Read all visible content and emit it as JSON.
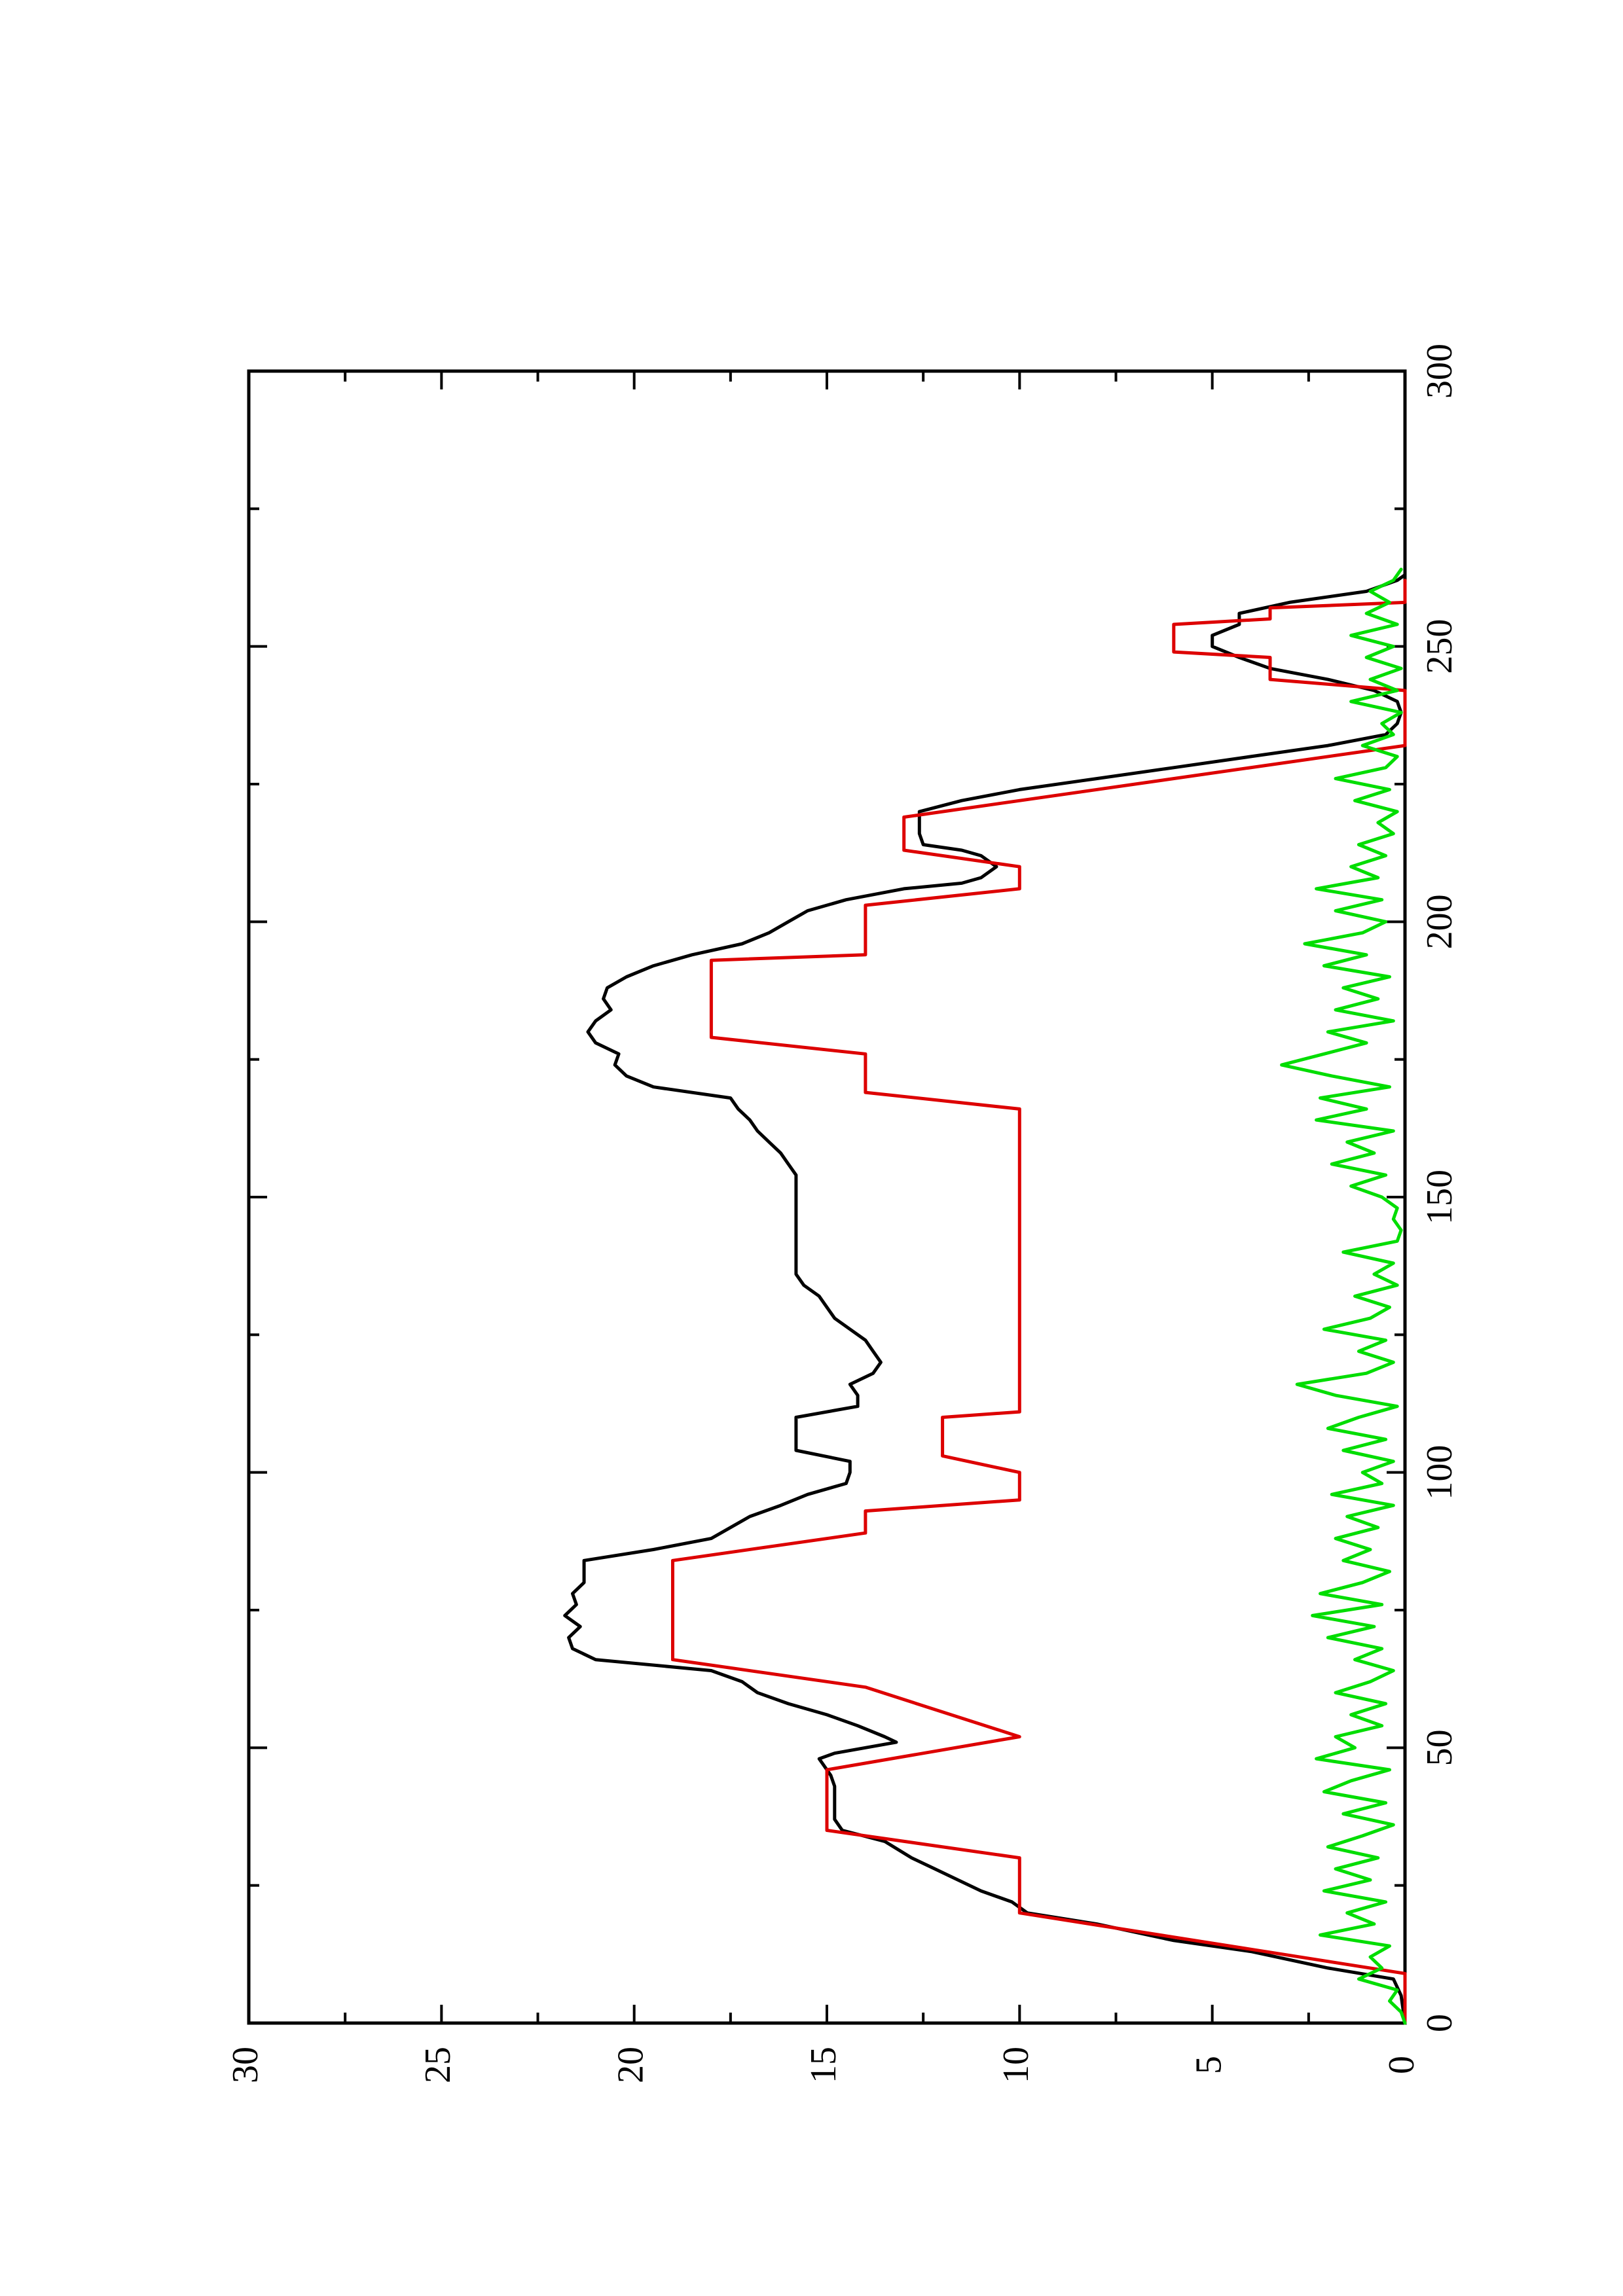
{
  "chart_data": {
    "type": "line",
    "title": "",
    "xlabel": "",
    "ylabel": "",
    "orientation": "rotated 90 degrees counter-clockwise (x axis runs bottom-to-top, y axis runs right-to-left)",
    "xlim": [
      0,
      300
    ],
    "ylim": [
      0,
      30
    ],
    "x_ticks": [
      "0",
      "50",
      "100",
      "150",
      "200",
      "250",
      "300"
    ],
    "y_ticks": [
      "0",
      "5",
      "10",
      "15",
      "20",
      "25",
      "30"
    ],
    "grid": false,
    "legend": "none",
    "series": [
      {
        "color": "#000000",
        "points": [
          [
            0,
            0
          ],
          [
            5,
            0.1
          ],
          [
            8,
            0.3
          ],
          [
            10,
            2
          ],
          [
            13,
            4
          ],
          [
            15,
            6
          ],
          [
            18,
            8
          ],
          [
            20,
            9.8
          ],
          [
            22,
            10.2
          ],
          [
            24,
            11
          ],
          [
            26,
            11.6
          ],
          [
            28,
            12.2
          ],
          [
            30,
            12.8
          ],
          [
            33,
            13.5
          ],
          [
            35,
            14.6
          ],
          [
            37,
            14.8
          ],
          [
            40,
            14.8
          ],
          [
            43,
            14.8
          ],
          [
            45,
            14.9
          ],
          [
            47,
            15.1
          ],
          [
            48,
            15.2
          ],
          [
            49,
            14.8
          ],
          [
            50,
            14
          ],
          [
            51,
            13.2
          ],
          [
            52,
            13.5
          ],
          [
            54,
            14.2
          ],
          [
            56,
            15
          ],
          [
            58,
            16
          ],
          [
            60,
            16.8
          ],
          [
            62,
            17.2
          ],
          [
            64,
            18
          ],
          [
            66,
            21
          ],
          [
            68,
            21.6
          ],
          [
            70,
            21.7
          ],
          [
            72,
            21.4
          ],
          [
            74,
            21.8
          ],
          [
            76,
            21.5
          ],
          [
            78,
            21.6
          ],
          [
            80,
            21.3
          ],
          [
            82,
            21.3
          ],
          [
            84,
            21.3
          ],
          [
            86,
            19.5
          ],
          [
            88,
            18
          ],
          [
            90,
            17.5
          ],
          [
            92,
            17
          ],
          [
            94,
            16.2
          ],
          [
            96,
            15.5
          ],
          [
            98,
            14.5
          ],
          [
            100,
            14.4
          ],
          [
            102,
            14.4
          ],
          [
            104,
            15.8
          ],
          [
            106,
            15.8
          ],
          [
            108,
            15.8
          ],
          [
            110,
            15.8
          ],
          [
            112,
            14.2
          ],
          [
            114,
            14.2
          ],
          [
            116,
            14.4
          ],
          [
            118,
            13.8
          ],
          [
            120,
            13.6
          ],
          [
            122,
            13.8
          ],
          [
            124,
            14
          ],
          [
            126,
            14.4
          ],
          [
            128,
            14.8
          ],
          [
            130,
            15
          ],
          [
            132,
            15.2
          ],
          [
            134,
            15.6
          ],
          [
            136,
            15.8
          ],
          [
            138,
            15.8
          ],
          [
            140,
            15.8
          ],
          [
            142,
            15.8
          ],
          [
            144,
            15.8
          ],
          [
            146,
            15.8
          ],
          [
            148,
            15.8
          ],
          [
            150,
            15.8
          ],
          [
            152,
            15.8
          ],
          [
            154,
            15.8
          ],
          [
            156,
            16
          ],
          [
            158,
            16.2
          ],
          [
            160,
            16.5
          ],
          [
            162,
            16.8
          ],
          [
            164,
            17
          ],
          [
            166,
            17.3
          ],
          [
            168,
            17.5
          ],
          [
            170,
            19.5
          ],
          [
            172,
            20.2
          ],
          [
            174,
            20.5
          ],
          [
            176,
            20.4
          ],
          [
            178,
            21
          ],
          [
            180,
            21.2
          ],
          [
            182,
            21
          ],
          [
            184,
            20.6
          ],
          [
            186,
            20.8
          ],
          [
            188,
            20.7
          ],
          [
            190,
            20.2
          ],
          [
            192,
            19.5
          ],
          [
            194,
            18.5
          ],
          [
            196,
            17.2
          ],
          [
            198,
            16.5
          ],
          [
            200,
            16
          ],
          [
            202,
            15.5
          ],
          [
            204,
            14.5
          ],
          [
            206,
            13
          ],
          [
            207,
            11.5
          ],
          [
            208,
            11
          ],
          [
            209,
            10.8
          ],
          [
            210,
            10.6
          ],
          [
            212,
            11
          ],
          [
            213,
            11.5
          ],
          [
            214,
            12.5
          ],
          [
            216,
            12.6
          ],
          [
            218,
            12.6
          ],
          [
            220,
            12.6
          ],
          [
            222,
            11.5
          ],
          [
            224,
            10
          ],
          [
            226,
            8
          ],
          [
            228,
            6
          ],
          [
            230,
            4
          ],
          [
            232,
            2
          ],
          [
            234,
            0.5
          ],
          [
            236,
            0.2
          ],
          [
            238,
            0.1
          ],
          [
            240,
            0.2
          ],
          [
            242,
            0.8
          ],
          [
            244,
            2
          ],
          [
            246,
            3.5
          ],
          [
            248,
            4.3
          ],
          [
            250,
            5
          ],
          [
            252,
            5
          ],
          [
            254,
            4.3
          ],
          [
            256,
            4.3
          ],
          [
            258,
            3
          ],
          [
            260,
            1
          ],
          [
            262,
            0.2
          ],
          [
            263,
            0
          ]
        ]
      },
      {
        "color": "#dd0000",
        "points": [
          [
            0,
            0
          ],
          [
            9,
            0
          ],
          [
            20,
            10
          ],
          [
            30,
            10
          ],
          [
            35,
            15
          ],
          [
            46,
            15
          ],
          [
            52,
            10
          ],
          [
            61,
            14
          ],
          [
            66,
            19
          ],
          [
            84,
            19
          ],
          [
            89,
            14
          ],
          [
            93,
            14
          ],
          [
            95,
            10
          ],
          [
            100,
            10
          ],
          [
            103,
            12
          ],
          [
            110,
            12
          ],
          [
            111,
            10
          ],
          [
            166,
            10
          ],
          [
            169,
            14
          ],
          [
            176,
            14
          ],
          [
            179,
            18
          ],
          [
            193,
            18
          ],
          [
            194,
            14
          ],
          [
            203,
            14
          ],
          [
            206,
            10
          ],
          [
            210,
            10
          ],
          [
            213,
            13
          ],
          [
            219,
            13
          ],
          [
            232,
            0
          ],
          [
            242,
            0
          ],
          [
            244,
            3.5
          ],
          [
            248,
            3.5
          ],
          [
            249,
            6
          ],
          [
            254,
            6
          ],
          [
            255,
            3.5
          ],
          [
            257,
            3.5
          ],
          [
            258,
            0
          ],
          [
            262,
            0
          ]
        ]
      },
      {
        "color": "#00dd00",
        "points": [
          [
            0,
            0
          ],
          [
            2,
            0.1
          ],
          [
            4,
            0.4
          ],
          [
            6,
            0.2
          ],
          [
            8,
            1.2
          ],
          [
            10,
            0.6
          ],
          [
            12,
            0.9
          ],
          [
            14,
            0.4
          ],
          [
            16,
            2.2
          ],
          [
            18,
            0.8
          ],
          [
            20,
            1.5
          ],
          [
            22,
            0.5
          ],
          [
            24,
            2.1
          ],
          [
            26,
            0.9
          ],
          [
            28,
            1.8
          ],
          [
            30,
            0.7
          ],
          [
            32,
            2.0
          ],
          [
            34,
            1.1
          ],
          [
            36,
            0.3
          ],
          [
            38,
            1.6
          ],
          [
            40,
            0.5
          ],
          [
            42,
            2.1
          ],
          [
            44,
            1.4
          ],
          [
            46,
            0.4
          ],
          [
            48,
            2.3
          ],
          [
            50,
            1.3
          ],
          [
            52,
            1.8
          ],
          [
            54,
            0.6
          ],
          [
            56,
            1.4
          ],
          [
            58,
            0.5
          ],
          [
            60,
            1.8
          ],
          [
            62,
            0.9
          ],
          [
            64,
            0.3
          ],
          [
            66,
            1.3
          ],
          [
            68,
            0.6
          ],
          [
            70,
            2.0
          ],
          [
            72,
            0.8
          ],
          [
            74,
            2.4
          ],
          [
            76,
            0.6
          ],
          [
            78,
            2.2
          ],
          [
            80,
            1.1
          ],
          [
            82,
            0.4
          ],
          [
            84,
            1.6
          ],
          [
            86,
            0.9
          ],
          [
            88,
            1.8
          ],
          [
            90,
            0.7
          ],
          [
            92,
            1.5
          ],
          [
            94,
            0.3
          ],
          [
            96,
            1.9
          ],
          [
            98,
            0.6
          ],
          [
            100,
            1.1
          ],
          [
            102,
            0.3
          ],
          [
            104,
            1.6
          ],
          [
            106,
            0.5
          ],
          [
            108,
            2.0
          ],
          [
            110,
            1.2
          ],
          [
            112,
            0.2
          ],
          [
            114,
            1.8
          ],
          [
            116,
            2.8
          ],
          [
            118,
            1.0
          ],
          [
            120,
            0.3
          ],
          [
            122,
            1.2
          ],
          [
            124,
            0.5
          ],
          [
            126,
            2.1
          ],
          [
            128,
            0.9
          ],
          [
            130,
            0.4
          ],
          [
            132,
            1.3
          ],
          [
            134,
            0.2
          ],
          [
            136,
            0.8
          ],
          [
            138,
            0.3
          ],
          [
            140,
            1.6
          ],
          [
            142,
            0.2
          ],
          [
            144,
            0.1
          ],
          [
            146,
            0.3
          ],
          [
            148,
            0.2
          ],
          [
            150,
            0.6
          ],
          [
            152,
            1.4
          ],
          [
            154,
            0.5
          ],
          [
            156,
            1.9
          ],
          [
            158,
            0.8
          ],
          [
            160,
            1.5
          ],
          [
            162,
            0.3
          ],
          [
            164,
            2.3
          ],
          [
            166,
            1.0
          ],
          [
            168,
            2.2
          ],
          [
            170,
            0.4
          ],
          [
            172,
            1.9
          ],
          [
            174,
            3.2
          ],
          [
            176,
            2.1
          ],
          [
            178,
            1.0
          ],
          [
            180,
            2.0
          ],
          [
            182,
            0.3
          ],
          [
            184,
            1.8
          ],
          [
            186,
            0.7
          ],
          [
            188,
            1.6
          ],
          [
            190,
            0.4
          ],
          [
            192,
            2.1
          ],
          [
            194,
            1.0
          ],
          [
            196,
            2.6
          ],
          [
            198,
            1.1
          ],
          [
            200,
            0.5
          ],
          [
            202,
            1.8
          ],
          [
            204,
            0.6
          ],
          [
            206,
            2.3
          ],
          [
            208,
            0.7
          ],
          [
            210,
            1.4
          ],
          [
            212,
            0.5
          ],
          [
            214,
            1.2
          ],
          [
            216,
            0.3
          ],
          [
            218,
            0.7
          ],
          [
            220,
            0.2
          ],
          [
            222,
            1.3
          ],
          [
            224,
            0.4
          ],
          [
            226,
            1.8
          ],
          [
            228,
            0.5
          ],
          [
            230,
            0.2
          ],
          [
            232,
            1.1
          ],
          [
            234,
            0.3
          ],
          [
            236,
            0.6
          ],
          [
            238,
            0.1
          ],
          [
            240,
            1.4
          ],
          [
            242,
            0.2
          ],
          [
            244,
            0.9
          ],
          [
            246,
            0.1
          ],
          [
            248,
            1.0
          ],
          [
            250,
            0.3
          ],
          [
            252,
            1.4
          ],
          [
            254,
            0.2
          ],
          [
            256,
            1.0
          ],
          [
            258,
            0.4
          ],
          [
            260,
            0.9
          ],
          [
            262,
            0.3
          ],
          [
            264,
            0.1
          ]
        ]
      }
    ]
  }
}
